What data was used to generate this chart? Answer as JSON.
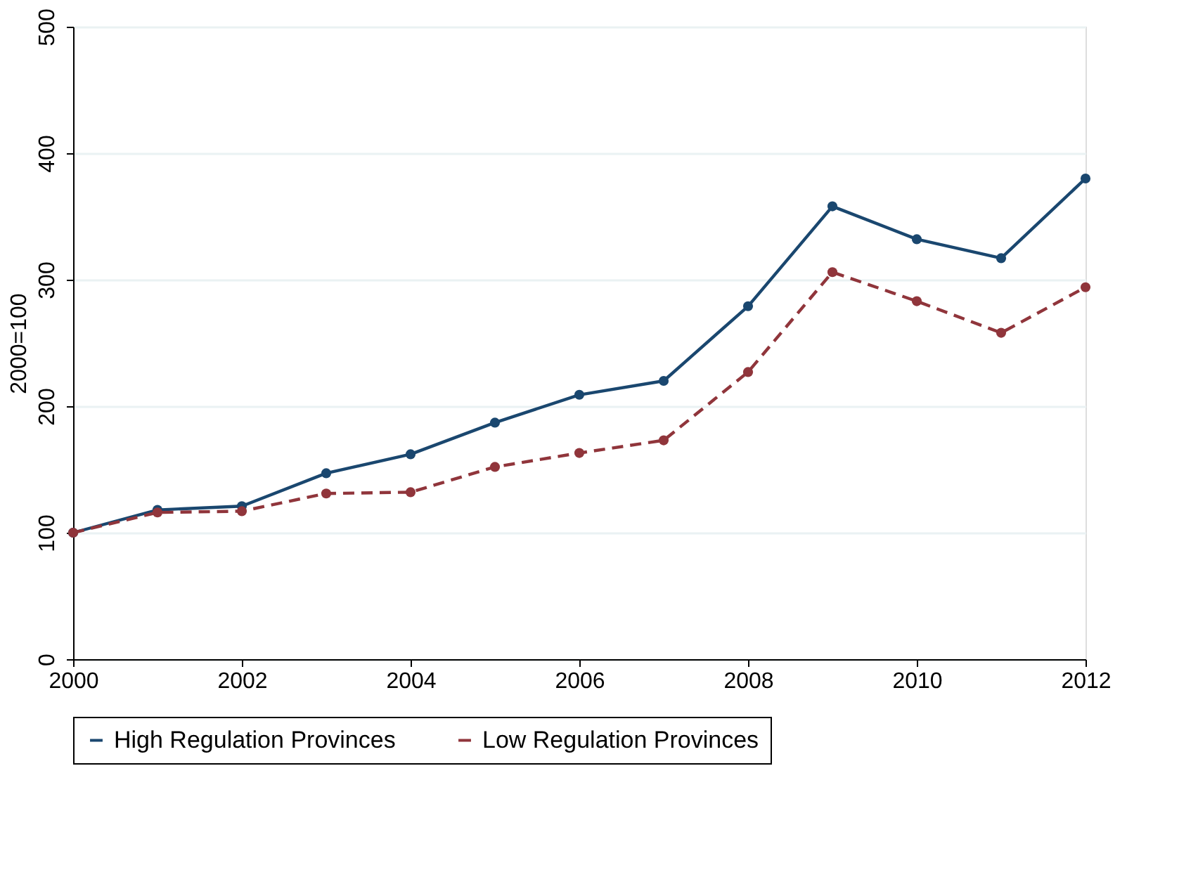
{
  "chart_data": {
    "type": "line",
    "ylabel": "2000=100",
    "x": [
      2000,
      2001,
      2002,
      2003,
      2004,
      2005,
      2006,
      2007,
      2008,
      2009,
      2010,
      2011,
      2012
    ],
    "series": [
      {
        "name": "High Regulation Provinces",
        "color": "#1a476f",
        "line_style": "solid",
        "values": [
          100,
          118,
          121,
          147,
          162,
          187,
          209,
          220,
          279,
          358,
          332,
          317,
          380
        ]
      },
      {
        "name": "Low Regulation Provinces",
        "color": "#90353b",
        "line_style": "dashed",
        "values": [
          100,
          116,
          117,
          131,
          132,
          152,
          163,
          173,
          227,
          306,
          283,
          258,
          294
        ]
      }
    ],
    "xlim": [
      2000,
      2012
    ],
    "xticks": [
      2000,
      2002,
      2004,
      2006,
      2008,
      2010,
      2012
    ],
    "ylim": [
      0,
      500
    ],
    "yticks": [
      0,
      100,
      200,
      300,
      400,
      500
    ],
    "grid": "y",
    "legend": "bottom",
    "marker": "circle"
  }
}
